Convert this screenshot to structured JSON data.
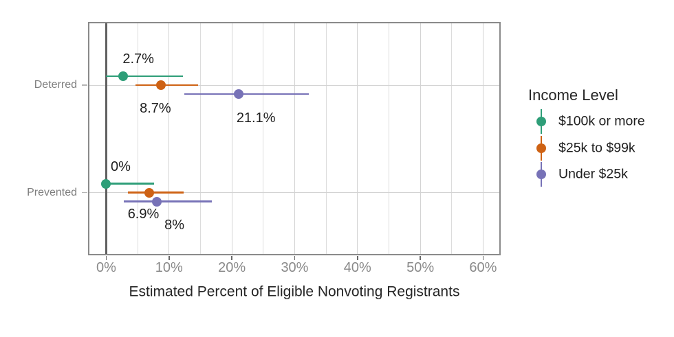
{
  "chart_data": {
    "type": "pointrange",
    "title": "",
    "xlabel": "Estimated Percent of Eligible Nonvoting Registrants",
    "ylabel": "",
    "legend_title": "Income Level",
    "legend_position": "right",
    "grid": true,
    "categories": [
      "Deterred",
      "Prevented"
    ],
    "x_ticks": [
      0,
      10,
      20,
      30,
      40,
      50,
      60
    ],
    "x_tick_labels": [
      "0%",
      "10%",
      "20%",
      "30%",
      "40%",
      "50%",
      "60%"
    ],
    "x_minor_ticks": [
      5,
      15,
      25,
      35,
      45,
      55
    ],
    "xlim": [
      -2.9,
      62.8
    ],
    "reference_line_x": 0,
    "series": [
      {
        "name": "$100k or more",
        "color": "#2E9E78",
        "points": [
          {
            "category": "Deterred",
            "value": 2.7,
            "ci": [
              0,
              12.2
            ],
            "label": "2.7%",
            "label_offset": [
              22,
              -25
            ]
          },
          {
            "category": "Prevented",
            "value": 0,
            "ci": [
              0,
              7.6
            ],
            "label": "0%",
            "label_offset": [
              21,
              -25
            ]
          }
        ]
      },
      {
        "name": "$25k to $99k",
        "color": "#CE6214",
        "points": [
          {
            "category": "Deterred",
            "value": 8.7,
            "ci": [
              4.7,
              14.6
            ],
            "label": "8.7%",
            "label_offset": [
              -8,
              34
            ]
          },
          {
            "category": "Prevented",
            "value": 6.9,
            "ci": [
              3.4,
              12.3
            ],
            "label": "6.9%",
            "label_offset": [
              -9,
              31
            ]
          }
        ]
      },
      {
        "name": "Under $25k",
        "color": "#7772B7",
        "points": [
          {
            "category": "Deterred",
            "value": 21.1,
            "ci": [
              12.4,
              32.2
            ],
            "label": "21.1%",
            "label_offset": [
              25,
              35
            ]
          },
          {
            "category": "Prevented",
            "value": 8,
            "ci": [
              2.8,
              16.8
            ],
            "label": "8%",
            "label_offset": [
              26,
              34
            ]
          }
        ]
      }
    ],
    "colors": {
      "grid_major": "#D3D3D3",
      "grid_minor": "#DCDCDC",
      "panel_border": "#8A8A8A",
      "zero_line": "#606060",
      "x_axis_text": "#8A8A8A",
      "y_axis_text": "#7E7E7E",
      "axis_title_text": "#262626",
      "data_label_text": "#1F1F1F",
      "tick_mark": "#6B6B6B"
    }
  }
}
